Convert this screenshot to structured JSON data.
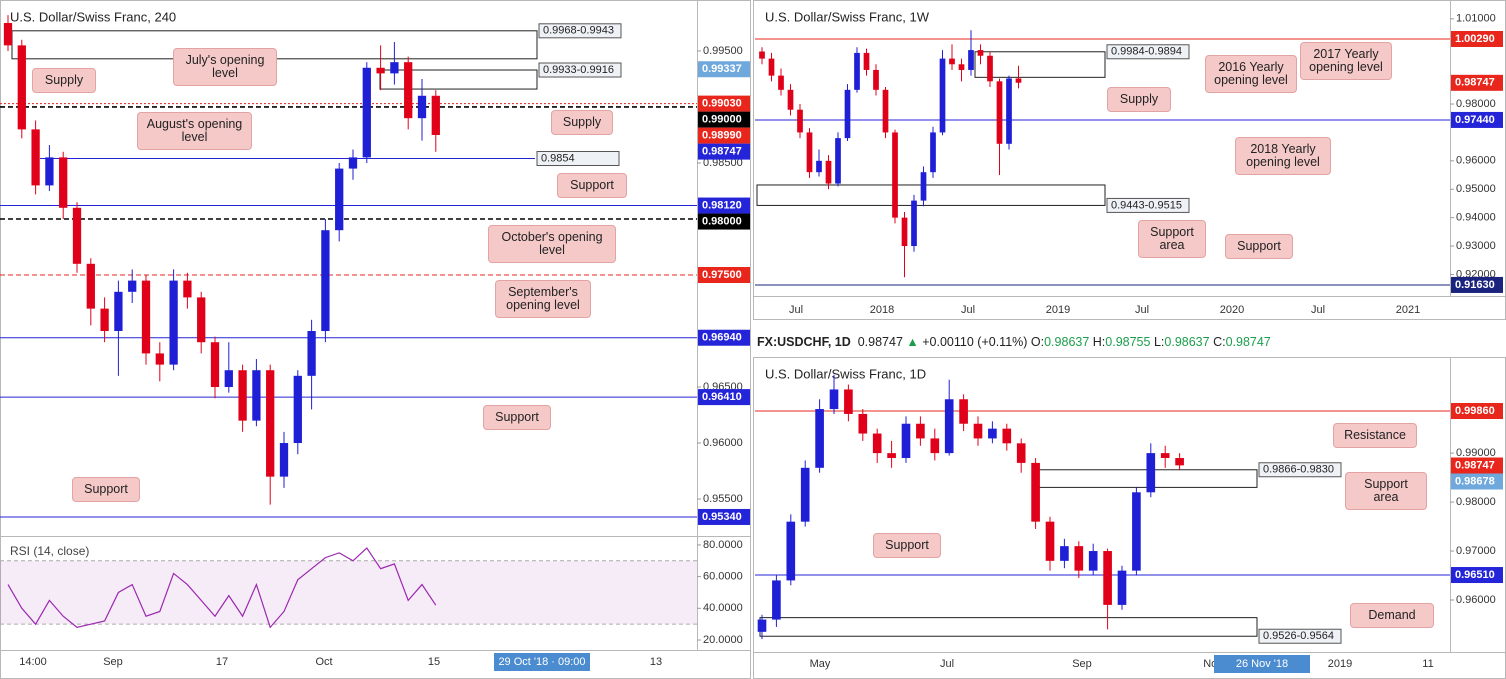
{
  "header": {
    "symbol": "FX:USDCHF, 1D",
    "last": "0.98747",
    "arrow": "▲",
    "change": "+0.00110 (+0.11%)",
    "o_label": "O:",
    "o": "0.98637",
    "h_label": "H:",
    "h": "0.98755",
    "l_label": "L:",
    "l": "0.98637",
    "c_label": "C:",
    "c": "0.98747"
  },
  "chart_data": [
    {
      "type": "candlestick",
      "title": "U.S. Dollar/Swiss Franc, 240",
      "up_color": "#1f1fd6",
      "down_color": "#e0001a",
      "candles": [
        [
          0.9975,
          0.9982,
          0.995,
          0.9955
        ],
        [
          0.9955,
          0.996,
          0.9872,
          0.988
        ],
        [
          0.988,
          0.9888,
          0.9822,
          0.983
        ],
        [
          0.983,
          0.9866,
          0.9825,
          0.9855
        ],
        [
          0.9855,
          0.986,
          0.98,
          0.981
        ],
        [
          0.981,
          0.9815,
          0.9752,
          0.976
        ],
        [
          0.976,
          0.9765,
          0.9705,
          0.972
        ],
        [
          0.972,
          0.973,
          0.969,
          0.97
        ],
        [
          0.97,
          0.9745,
          0.966,
          0.9735
        ],
        [
          0.9735,
          0.9755,
          0.9725,
          0.9745
        ],
        [
          0.9745,
          0.975,
          0.967,
          0.968
        ],
        [
          0.968,
          0.969,
          0.9655,
          0.967
        ],
        [
          0.967,
          0.9755,
          0.9665,
          0.9745
        ],
        [
          0.9745,
          0.9752,
          0.972,
          0.973
        ],
        [
          0.973,
          0.9735,
          0.968,
          0.969
        ],
        [
          0.969,
          0.9695,
          0.964,
          0.965
        ],
        [
          0.965,
          0.969,
          0.9645,
          0.9665
        ],
        [
          0.9665,
          0.967,
          0.961,
          0.962
        ],
        [
          0.962,
          0.9675,
          0.9615,
          0.9665
        ],
        [
          0.9665,
          0.967,
          0.9545,
          0.957
        ],
        [
          0.957,
          0.961,
          0.956,
          0.96
        ],
        [
          0.96,
          0.9665,
          0.959,
          0.966
        ],
        [
          0.966,
          0.971,
          0.963,
          0.97
        ],
        [
          0.97,
          0.98,
          0.969,
          0.979
        ],
        [
          0.979,
          0.985,
          0.978,
          0.9845
        ],
        [
          0.9845,
          0.9862,
          0.9835,
          0.9855
        ],
        [
          0.9855,
          0.994,
          0.985,
          0.9935
        ],
        [
          0.9935,
          0.9955,
          0.9915,
          0.993
        ],
        [
          0.993,
          0.9958,
          0.992,
          0.994
        ],
        [
          0.994,
          0.9945,
          0.988,
          0.989
        ],
        [
          0.989,
          0.9925,
          0.987,
          0.991
        ],
        [
          0.991,
          0.9915,
          0.986,
          0.9875
        ]
      ],
      "ylim": [
        0.95179,
        0.99955
      ],
      "yticks": [
        {
          "value": 0.995,
          "label": "0.99500"
        },
        {
          "value": 0.985,
          "label": "0.98500"
        },
        {
          "value": 0.965,
          "label": "0.96500"
        },
        {
          "value": 0.96,
          "label": "0.96000"
        },
        {
          "value": 0.955,
          "label": "0.95500"
        }
      ],
      "levels": [
        {
          "value": 0.99337,
          "label": "0.99337",
          "color": "#6fa8dc",
          "style": "none"
        },
        {
          "value": 0.9903,
          "label": "0.99030",
          "color": "#e8261c",
          "style": "dotted"
        },
        {
          "value": 0.99,
          "label": "0.99000",
          "color": "#000000",
          "style": "dashed"
        },
        {
          "value": 0.9899,
          "label": "0.98990",
          "color": "#e8261c",
          "style": "none"
        },
        {
          "value": 0.98747,
          "label": "0.98747",
          "color": "#2424d8",
          "style": "none"
        },
        {
          "value": 0.9812,
          "label": "0.98120",
          "color": "#2424d8",
          "style": "solid"
        },
        {
          "value": 0.98,
          "label": "0.98000",
          "color": "#000000",
          "style": "dashed"
        },
        {
          "value": 0.975,
          "label": "0.97500",
          "color": "#e8261c",
          "style": "dashed"
        },
        {
          "value": 0.9694,
          "label": "0.96940",
          "color": "#2424d8",
          "style": "solid"
        },
        {
          "value": 0.9641,
          "label": "0.96410",
          "color": "#2424d8",
          "style": "solid"
        },
        {
          "value": 0.9534,
          "label": "0.95340",
          "color": "#2424d8",
          "style": "solid"
        }
      ],
      "zones": [
        {
          "label": "0.9968-0.9943",
          "range": [
            0.9968,
            0.9943
          ]
        },
        {
          "label": "0.9933-0.9916",
          "range": [
            0.9933,
            0.9916
          ]
        },
        {
          "label": "0.9854",
          "range": [
            0.9854
          ]
        }
      ],
      "annotations": [
        "Supply",
        "July's opening level",
        "August's opening level",
        "Supply",
        "Support",
        "October's opening level",
        "September's opening level",
        "Support",
        "Support"
      ],
      "x_labels": [
        "14:00",
        "Sep",
        "17",
        "Oct",
        "15",
        "13"
      ],
      "cursor_label": "29 Oct '18 · 09:00",
      "rsi": {
        "title": "RSI (14, close)",
        "color": "#9c27b0",
        "values": [
          55,
          40,
          30,
          45,
          35,
          28,
          30,
          32,
          50,
          55,
          35,
          38,
          62,
          55,
          45,
          35,
          48,
          35,
          55,
          28,
          38,
          58,
          65,
          72,
          75,
          70,
          78,
          65,
          68,
          45,
          55,
          42
        ],
        "ylim": [
          13.7,
          85
        ],
        "yticks": [
          {
            "value": 80,
            "label": "80.0000"
          },
          {
            "value": 60,
            "label": "60.0000"
          },
          {
            "value": 40,
            "label": "40.0000"
          },
          {
            "value": 20,
            "label": "20.0000"
          }
        ],
        "bands": [
          30,
          70
        ]
      }
    },
    {
      "type": "candlestick",
      "title": "U.S. Dollar/Swiss Franc, 1W",
      "up_color": "#1f1fd6",
      "down_color": "#e0001a",
      "candles": [
        [
          0.9985,
          1.0,
          0.994,
          0.996
        ],
        [
          0.996,
          0.998,
          0.988,
          0.99
        ],
        [
          0.99,
          0.9925,
          0.983,
          0.985
        ],
        [
          0.985,
          0.987,
          0.976,
          0.978
        ],
        [
          0.978,
          0.98,
          0.968,
          0.97
        ],
        [
          0.97,
          0.9715,
          0.954,
          0.956
        ],
        [
          0.956,
          0.964,
          0.9545,
          0.96
        ],
        [
          0.96,
          0.962,
          0.95,
          0.952
        ],
        [
          0.952,
          0.97,
          0.951,
          0.968
        ],
        [
          0.968,
          0.987,
          0.967,
          0.985
        ],
        [
          0.985,
          1.0,
          0.984,
          0.998
        ],
        [
          0.998,
          0.9995,
          0.99,
          0.992
        ],
        [
          0.992,
          0.994,
          0.983,
          0.985
        ],
        [
          0.985,
          0.986,
          0.968,
          0.97
        ],
        [
          0.97,
          0.971,
          0.938,
          0.94
        ],
        [
          0.94,
          0.942,
          0.919,
          0.93
        ],
        [
          0.93,
          0.948,
          0.928,
          0.946
        ],
        [
          0.946,
          0.958,
          0.944,
          0.956
        ],
        [
          0.956,
          0.972,
          0.954,
          0.97
        ],
        [
          0.97,
          0.999,
          0.969,
          0.996
        ],
        [
          0.996,
          1.001,
          0.992,
          0.994
        ],
        [
          0.994,
          0.996,
          0.988,
          0.992
        ],
        [
          0.992,
          1.006,
          0.99,
          0.999
        ],
        [
          0.999,
          1.001,
          0.994,
          0.997
        ],
        [
          0.997,
          0.9985,
          0.986,
          0.988
        ],
        [
          0.988,
          0.989,
          0.955,
          0.966
        ],
        [
          0.966,
          0.99,
          0.964,
          0.989
        ],
        [
          0.989,
          0.9935,
          0.9855,
          0.9875
        ]
      ],
      "ylim": [
        0.91276,
        1.01487
      ],
      "yticks": [
        {
          "value": 1.01,
          "label": "1.01000"
        },
        {
          "value": 0.98,
          "label": "0.98000"
        },
        {
          "value": 0.96,
          "label": "0.96000"
        },
        {
          "value": 0.95,
          "label": "0.95000"
        },
        {
          "value": 0.94,
          "label": "0.94000"
        },
        {
          "value": 0.93,
          "label": "0.93000"
        },
        {
          "value": 0.92,
          "label": "0.92000"
        }
      ],
      "levels": [
        {
          "value": 1.0029,
          "label": "1.00290",
          "color": "#e8261c",
          "style": "solid"
        },
        {
          "value": 0.98747,
          "label": "0.98747",
          "color": "#e8261c",
          "style": "none"
        },
        {
          "value": 0.9744,
          "label": "0.97440",
          "color": "#2424d8",
          "style": "solid"
        },
        {
          "value": 0.9163,
          "label": "0.91630",
          "color": "#1a237e",
          "style": "solid"
        }
      ],
      "zones": [
        {
          "label": "0.9984-0.9894",
          "range": [
            0.9984,
            0.9894
          ]
        },
        {
          "label": "0.9443-0.9515",
          "range": [
            0.9443,
            0.9515
          ]
        }
      ],
      "annotations": [
        "Supply",
        "2016 Yearly opening level",
        "2017 Yearly opening level",
        "2018 Yearly opening level",
        "Support area",
        "Support"
      ],
      "x_labels": [
        "Jul",
        "2018",
        "Jul",
        "2019",
        "Jul",
        "2020",
        "Jul",
        "2021"
      ]
    },
    {
      "type": "candlestick",
      "title": "U.S. Dollar/Swiss Franc, 1D",
      "up_color": "#1f1fd6",
      "down_color": "#e0001a",
      "candles": [
        [
          0.9535,
          0.957,
          0.952,
          0.956
        ],
        [
          0.956,
          0.965,
          0.9545,
          0.964
        ],
        [
          0.964,
          0.9775,
          0.963,
          0.976
        ],
        [
          0.976,
          0.9885,
          0.975,
          0.987
        ],
        [
          0.987,
          1.001,
          0.986,
          0.999
        ],
        [
          0.999,
          1.006,
          0.998,
          1.003
        ],
        [
          1.003,
          1.004,
          0.9965,
          0.998
        ],
        [
          0.998,
          0.999,
          0.9925,
          0.994
        ],
        [
          0.994,
          0.995,
          0.988,
          0.99
        ],
        [
          0.99,
          0.9925,
          0.987,
          0.989
        ],
        [
          0.989,
          0.9975,
          0.988,
          0.996
        ],
        [
          0.996,
          0.9975,
          0.9915,
          0.993
        ],
        [
          0.993,
          0.995,
          0.9885,
          0.99
        ],
        [
          0.99,
          1.005,
          0.9895,
          1.001
        ],
        [
          1.001,
          1.002,
          0.9945,
          0.996
        ],
        [
          0.996,
          0.9975,
          0.9915,
          0.993
        ],
        [
          0.993,
          0.9965,
          0.992,
          0.995
        ],
        [
          0.995,
          0.996,
          0.9905,
          0.992
        ],
        [
          0.992,
          0.993,
          0.986,
          0.988
        ],
        [
          0.988,
          0.989,
          0.9745,
          0.976
        ],
        [
          0.976,
          0.977,
          0.966,
          0.968
        ],
        [
          0.968,
          0.9725,
          0.9665,
          0.971
        ],
        [
          0.971,
          0.972,
          0.9645,
          0.966
        ],
        [
          0.966,
          0.9715,
          0.965,
          0.97
        ],
        [
          0.97,
          0.9705,
          0.954,
          0.959
        ],
        [
          0.959,
          0.967,
          0.958,
          0.966
        ],
        [
          0.966,
          0.983,
          0.965,
          0.982
        ],
        [
          0.982,
          0.992,
          0.981,
          0.99
        ],
        [
          0.99,
          0.9915,
          0.987,
          0.989
        ],
        [
          0.989,
          0.99,
          0.9865,
          0.9875
        ]
      ],
      "ylim": [
        0.94938,
        1.00861
      ],
      "yticks": [
        {
          "value": 0.99,
          "label": "0.99000"
        },
        {
          "value": 0.98,
          "label": "0.98000"
        },
        {
          "value": 0.97,
          "label": "0.97000"
        },
        {
          "value": 0.96,
          "label": "0.96000"
        }
      ],
      "levels": [
        {
          "value": 0.9986,
          "label": "0.99860",
          "color": "#e8261c",
          "style": "solid"
        },
        {
          "value": 0.98747,
          "label": "0.98747",
          "color": "#e8261c",
          "style": "none"
        },
        {
          "value": 0.98678,
          "label": "0.98678",
          "color": "#6fa8dc",
          "style": "none"
        },
        {
          "value": 0.9651,
          "label": "0.96510",
          "color": "#2424d8",
          "style": "solid"
        }
      ],
      "zones": [
        {
          "label": "0.9866-0.9830",
          "range": [
            0.9866,
            0.983
          ]
        },
        {
          "label": "0.9526-0.9564",
          "range": [
            0.9526,
            0.9564
          ]
        }
      ],
      "annotations": [
        "Resistance",
        "Support area",
        "Support",
        "Demand"
      ],
      "x_labels": [
        "May",
        "Jul",
        "Sep",
        "Nov",
        "2019",
        "11"
      ],
      "cursor_label": "26 Nov '18"
    }
  ]
}
